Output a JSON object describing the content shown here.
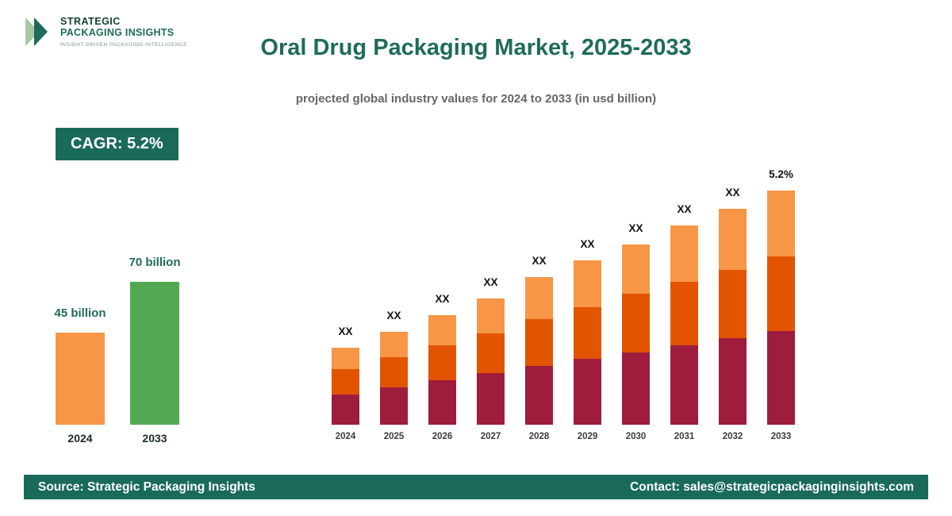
{
  "header": {
    "logo": {
      "line1": "STRATEGIC",
      "line2": "PACKAGING INSIGHTS",
      "tagline": "INSIGHT-DRIVEN PACKAGING INTELLIGENCE"
    },
    "title": "Oral Drug Packaging Market, 2025-2033",
    "subtitle": "projected global industry values for 2024 to 2033 (in usd billion)"
  },
  "cagr": {
    "label": "CAGR: 5.2%"
  },
  "footer": {
    "source": "Source: Strategic Packaging Insights",
    "contact": "Contact: sales@strategicpackaginginsights.com"
  },
  "colors": {
    "teal": "#1a6a5a",
    "orange": "#f79646",
    "dark_orange": "#e25400",
    "maroon": "#9e1c3c",
    "green": "#53a951"
  },
  "chart_data": [
    {
      "type": "bar",
      "name": "market-size-comparison",
      "categories": [
        "2024",
        "2033"
      ],
      "values": [
        45,
        70
      ],
      "value_labels": [
        "45 billion",
        "70 billion"
      ],
      "bar_colors": [
        "#f79646",
        "#53a951"
      ],
      "ylabel": "usd billion",
      "ylim": [
        0,
        70
      ]
    },
    {
      "type": "stacked-bar",
      "name": "yearly-projection",
      "categories": [
        "2024",
        "2025",
        "2026",
        "2027",
        "2028",
        "2029",
        "2030",
        "2031",
        "2032",
        "2033"
      ],
      "series": [
        {
          "name": "segment-bottom",
          "color": "#9e1c3c",
          "values": [
            13,
            16,
            19,
            22,
            25,
            28,
            31,
            34,
            37,
            40
          ]
        },
        {
          "name": "segment-middle",
          "color": "#e25400",
          "values": [
            11,
            13,
            15,
            17,
            20,
            22,
            25,
            27,
            29,
            32
          ]
        },
        {
          "name": "segment-top",
          "color": "#f79646",
          "values": [
            9,
            11,
            13,
            15,
            18,
            20,
            21,
            24,
            26,
            28
          ]
        }
      ],
      "bar_labels": [
        "XX",
        "XX",
        "XX",
        "XX",
        "XX",
        "XX",
        "XX",
        "XX",
        "XX",
        "5.2%"
      ],
      "ylim": [
        0,
        100
      ],
      "legend": "none",
      "grid": false
    }
  ]
}
